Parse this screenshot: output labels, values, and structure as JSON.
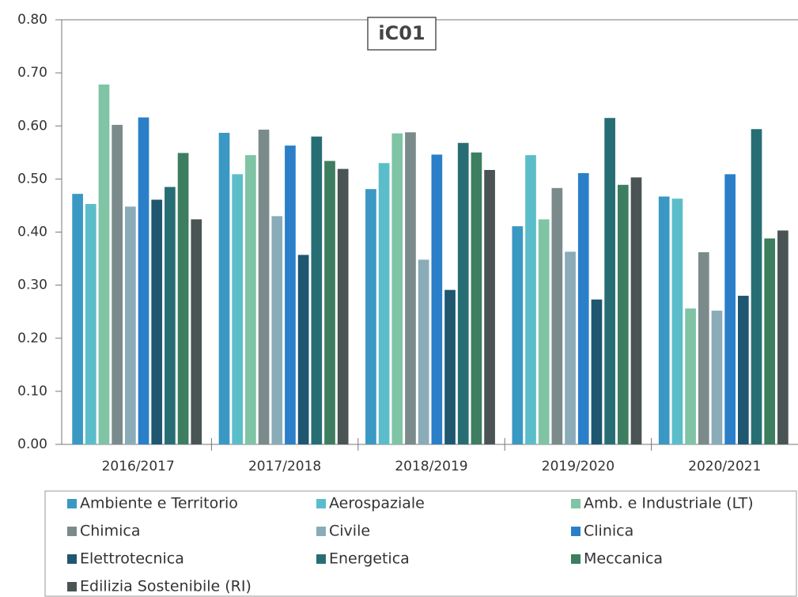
{
  "chart_data": {
    "type": "bar",
    "title": "iC01",
    "categories": [
      "2016/2017",
      "2017/2018",
      "2018/2019",
      "2019/2020",
      "2020/2021"
    ],
    "series": [
      {
        "name": "Ambiente e Territorio",
        "color": "#3a98c4",
        "values": [
          0.472,
          0.587,
          0.481,
          0.411,
          0.467
        ]
      },
      {
        "name": "Aerospaziale",
        "color": "#5bbdca",
        "values": [
          0.453,
          0.509,
          0.53,
          0.545,
          0.463
        ]
      },
      {
        "name": "Amb. e Industriale (LT)",
        "color": "#7fc4a4",
        "values": [
          0.678,
          0.545,
          0.586,
          0.424,
          0.256
        ]
      },
      {
        "name": "Chimica",
        "color": "#7b8a8b",
        "values": [
          0.602,
          0.593,
          0.588,
          0.483,
          0.362
        ]
      },
      {
        "name": "Civile",
        "color": "#8aacb8",
        "values": [
          0.448,
          0.43,
          0.348,
          0.363,
          0.252
        ]
      },
      {
        "name": "Clinica",
        "color": "#2a7fc8",
        "values": [
          0.616,
          0.563,
          0.546,
          0.511,
          0.509
        ]
      },
      {
        "name": "Elettrotecnica",
        "color": "#1f5670",
        "values": [
          0.461,
          0.357,
          0.291,
          0.273,
          0.28
        ]
      },
      {
        "name": "Energetica",
        "color": "#276e74",
        "values": [
          0.485,
          0.58,
          0.568,
          0.615,
          0.594
        ]
      },
      {
        "name": "Meccanica",
        "color": "#3d7d60",
        "values": [
          0.549,
          0.534,
          0.55,
          0.489,
          0.388
        ]
      },
      {
        "name": "Edilizia Sostenibile (RI)",
        "color": "#4a5454",
        "values": [
          0.424,
          0.519,
          0.517,
          0.503,
          0.403
        ]
      }
    ],
    "ylim": [
      0,
      0.8
    ],
    "yticks": [
      {
        "value": 0,
        "label": "0.00"
      },
      {
        "value": 0.1,
        "label": "0.10"
      },
      {
        "value": 0.2,
        "label": "0.20"
      },
      {
        "value": 0.3,
        "label": "0.30"
      },
      {
        "value": 0.4,
        "label": "0.40"
      },
      {
        "value": 0.5,
        "label": "0.50"
      },
      {
        "value": 0.6,
        "label": "0.60"
      },
      {
        "value": 0.7,
        "label": "0.70"
      },
      {
        "value": 0.8,
        "label": "0.80"
      }
    ],
    "grid": false
  }
}
